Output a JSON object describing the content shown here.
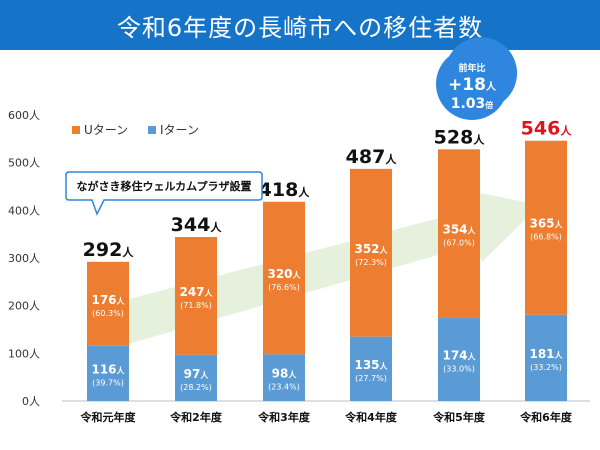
{
  "title": "令和6年度の長崎市への移住者数",
  "chart_data": {
    "type": "bar",
    "stacked": true,
    "categories": [
      "令和元年度",
      "令和2年度",
      "令和3年度",
      "令和4年度",
      "令和5年度",
      "令和6年度"
    ],
    "series": [
      {
        "name": "Iターン",
        "color": "#5b9bd5",
        "values": [
          116,
          97,
          98,
          135,
          174,
          181
        ],
        "percent": [
          "(39.7%)",
          "(28.2%)",
          "(23.4%)",
          "(27.7%)",
          "(33.0%)",
          "(33.2%)"
        ]
      },
      {
        "name": "Uターン",
        "color": "#ed7d31",
        "values": [
          176,
          247,
          320,
          352,
          354,
          365
        ],
        "percent": [
          "(60.3%)",
          "(71.8%)",
          "(76.6%)",
          "(72.3%)",
          "(67.0%)",
          "(66.8%)"
        ]
      }
    ],
    "totals": [
      292,
      344,
      418,
      487,
      528,
      546
    ],
    "highlight_color": "#e0141e",
    "unit": "人",
    "ylim": [
      0,
      600
    ],
    "yticks": [
      0,
      100,
      200,
      300,
      400,
      500,
      600
    ],
    "ytick_labels": [
      "0人",
      "100人",
      "200人",
      "300人",
      "400人",
      "500人",
      "600人"
    ],
    "legend": [
      "Uターン",
      "Iターン"
    ],
    "legend_position": "top-left",
    "grid": false
  },
  "annotation_note": "ながさき移住ウェルカムプラザ設置",
  "callout": {
    "line1": "前年比",
    "line2_num": "+18",
    "line2_unit": "人",
    "line3_num": "1.03",
    "line3_unit": "倍",
    "color": "#2e86de"
  }
}
